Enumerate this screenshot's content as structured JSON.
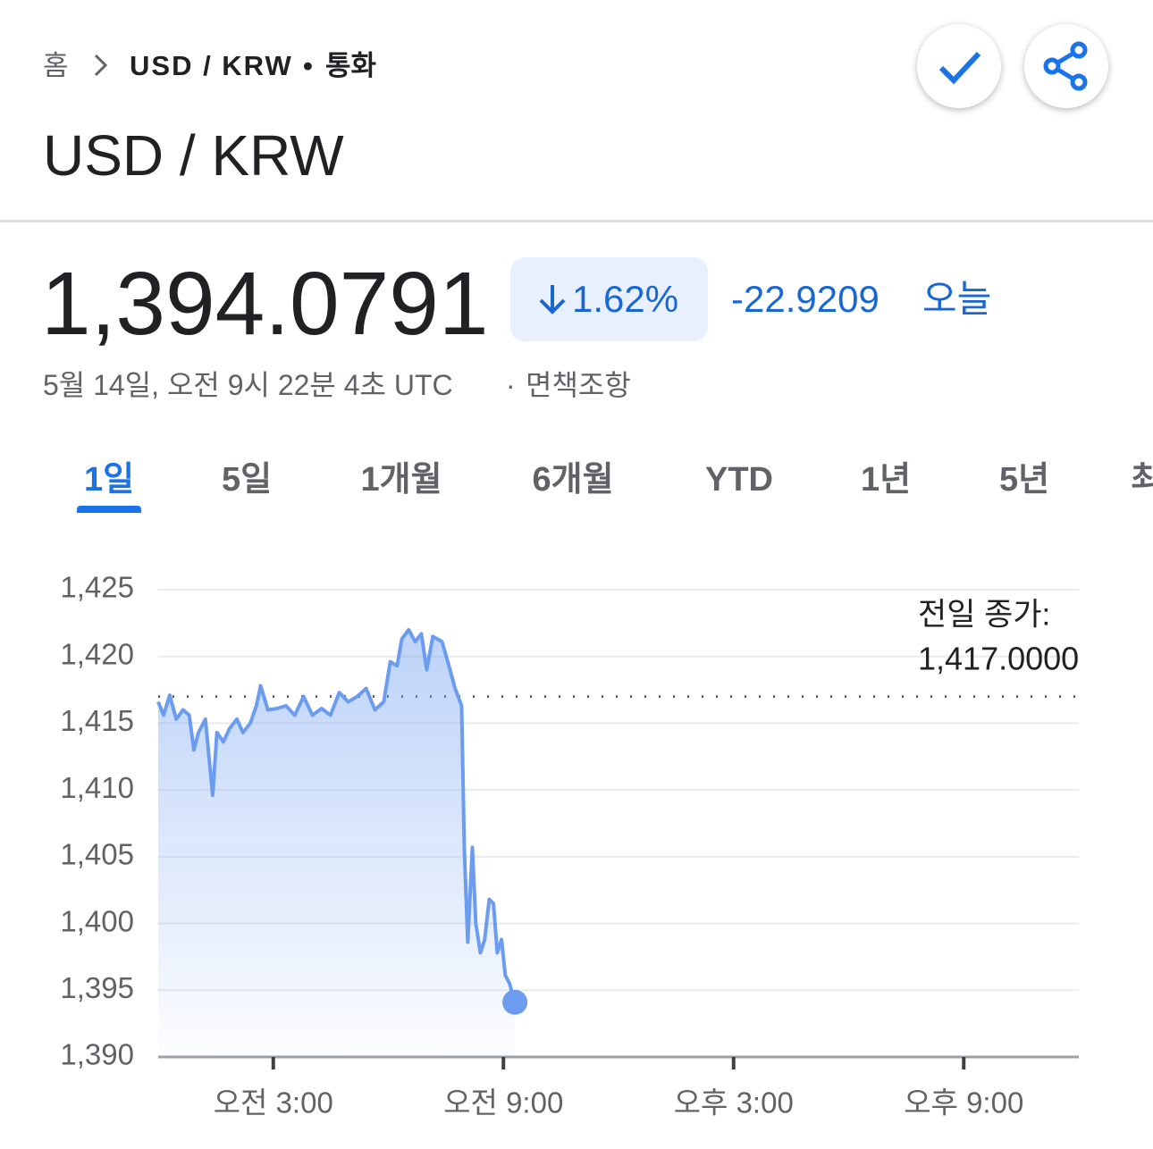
{
  "breadcrumb": {
    "home": "홈",
    "current": "USD / KRW",
    "separator": "•",
    "category": "통화"
  },
  "header": {
    "title": "USD / KRW"
  },
  "quote": {
    "price": "1,394.0791",
    "change_percent": "1.62%",
    "change": "-22.9209",
    "period": "오늘",
    "timestamp": "5월 14일, 오전 9시 22분 4초 UTC",
    "dot": "·",
    "disclaimer": "면책조항"
  },
  "tabs": [
    {
      "label": "1일",
      "selected": true
    },
    {
      "label": "5일",
      "selected": false
    },
    {
      "label": "1개월",
      "selected": false
    },
    {
      "label": "6개월",
      "selected": false
    },
    {
      "label": "YTD",
      "selected": false
    },
    {
      "label": "1년",
      "selected": false
    },
    {
      "label": "5년",
      "selected": false
    },
    {
      "label": "최대",
      "selected": false
    }
  ],
  "chart_data": {
    "type": "line",
    "xlim": [
      0,
      24
    ],
    "xticks": [
      {
        "value": 3,
        "label": "오전 3:00"
      },
      {
        "value": 9,
        "label": "오전 9:00"
      },
      {
        "value": 15,
        "label": "오후 3:00"
      },
      {
        "value": 21,
        "label": "오후 9:00"
      }
    ],
    "ylim": [
      1390,
      1425
    ],
    "yticks": [
      {
        "value": 1390,
        "label": "1,390"
      },
      {
        "value": 1395,
        "label": "1,395"
      },
      {
        "value": 1400,
        "label": "1,400"
      },
      {
        "value": 1405,
        "label": "1,405"
      },
      {
        "value": 1410,
        "label": "1,410"
      },
      {
        "value": 1415,
        "label": "1,415"
      },
      {
        "value": 1420,
        "label": "1,420"
      },
      {
        "value": 1425,
        "label": "1,425"
      }
    ],
    "grid": true,
    "previous_close": {
      "label": "전일 종가:",
      "value": 1417,
      "value_label": "1,417.0000"
    },
    "series": [
      {
        "name": "USD / KRW",
        "color": "#6b9cf0",
        "x": [
          0,
          0.14,
          0.3,
          0.47,
          0.65,
          0.81,
          0.93,
          1.05,
          1.23,
          1.33,
          1.42,
          1.53,
          1.7,
          1.86,
          2.05,
          2.21,
          2.4,
          2.56,
          2.67,
          2.86,
          3.09,
          3.33,
          3.56,
          3.79,
          4.02,
          4.26,
          4.49,
          4.72,
          4.95,
          5.19,
          5.42,
          5.65,
          5.88,
          6.05,
          6.23,
          6.35,
          6.53,
          6.7,
          6.86,
          7.0,
          7.16,
          7.4,
          7.58,
          7.74,
          7.91,
          7.98,
          8.07,
          8.19,
          8.28,
          8.4,
          8.51,
          8.63,
          8.74,
          8.84,
          8.95,
          9.05,
          9.16,
          9.3
        ],
        "values": [
          1416.6,
          1415.6,
          1417.1,
          1415.3,
          1416.0,
          1415.6,
          1413.0,
          1414.3,
          1415.3,
          1412.3,
          1409.6,
          1414.3,
          1413.6,
          1414.6,
          1415.3,
          1414.3,
          1415.0,
          1416.3,
          1417.8,
          1416.0,
          1416.1,
          1416.3,
          1415.6,
          1417.0,
          1415.6,
          1416.1,
          1415.6,
          1417.3,
          1416.6,
          1417.0,
          1417.6,
          1416.0,
          1416.6,
          1419.6,
          1419.3,
          1421.3,
          1422.0,
          1421.1,
          1421.7,
          1419.0,
          1421.5,
          1421.1,
          1419.3,
          1417.6,
          1416.3,
          1405.6,
          1398.6,
          1405.7,
          1400.0,
          1397.8,
          1398.8,
          1401.8,
          1401.5,
          1397.8,
          1398.8,
          1396.1,
          1395.5,
          1394.1
        ]
      }
    ]
  }
}
